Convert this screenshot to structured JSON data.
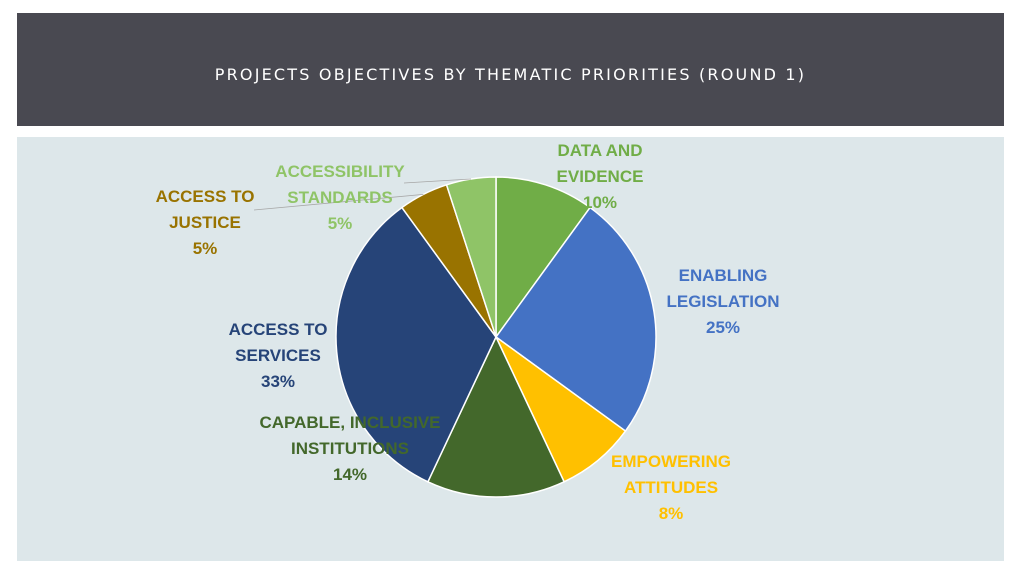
{
  "title": "PROJECTS OBJECTIVES BY THEMATIC PRIORITIES (ROUND 1)",
  "chart_data": {
    "type": "pie",
    "title": "",
    "slices": [
      {
        "name": "DATA AND EVIDENCE",
        "label_lines": [
          "DATA AND",
          "EVIDENCE",
          "10%"
        ],
        "value": 10,
        "color": "#70ad47",
        "label_color": "#70ad47"
      },
      {
        "name": "ENABLING LEGISLATION",
        "label_lines": [
          "ENABLING",
          "LEGISLATION",
          "25%"
        ],
        "value": 25,
        "color": "#4472c4",
        "label_color": "#4472c4"
      },
      {
        "name": "EMPOWERING ATTITUDES",
        "label_lines": [
          "EMPOWERING",
          "ATTITUDES",
          "8%"
        ],
        "value": 8,
        "color": "#ffc000",
        "label_color": "#ffc000"
      },
      {
        "name": "CAPABLE, INCLUSIVE INSTITUTIONS",
        "label_lines": [
          "CAPABLE, INCLUSIVE",
          "INSTITUTIONS",
          "14%"
        ],
        "value": 14,
        "color": "#43682b",
        "label_color": "#43682b"
      },
      {
        "name": "ACCESS TO SERVICES",
        "label_lines": [
          "ACCESS TO",
          "SERVICES",
          "33%"
        ],
        "value": 33,
        "color": "#264478",
        "label_color": "#264478"
      },
      {
        "name": "ACCESS TO JUSTICE",
        "label_lines": [
          "ACCESS TO",
          "JUSTICE",
          "5%"
        ],
        "value": 5,
        "color": "#997300",
        "label_color": "#997300"
      },
      {
        "name": "ACCESSIBILITY STANDARDS",
        "label_lines": [
          "ACCESSIBILITY",
          "STANDARDS",
          "5%"
        ],
        "value": 5,
        "color": "#8fc467",
        "label_color": "#8fc467"
      }
    ],
    "legend": "none"
  }
}
